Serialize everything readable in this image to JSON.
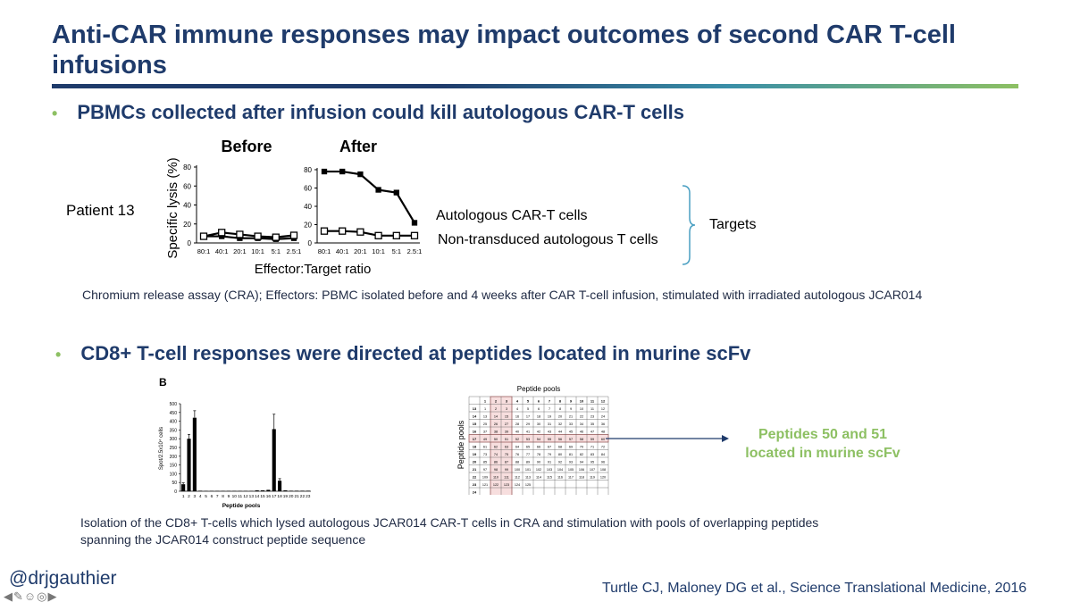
{
  "slide": {
    "title": "Anti-CAR immune responses may impact outcomes of second CAR T-cell infusions",
    "bullet1": "PBMCs collected after infusion could kill autologous CAR-T cells",
    "bullet2": "CD8+ T-cell responses were directed at peptides located in murine scFv",
    "bullet_glyph": "•",
    "patient_label": "Patient 13",
    "legend_car": "Autologous CAR-T cells",
    "legend_nontrans": "Non-transduced autologous T cells",
    "targets_label": "Targets",
    "cra_caption": "Chromium release assay (CRA); Effectors: PBMC isolated before and 4 weeks after CAR T-cell infusion, stimulated with irradiated autologous JCAR014",
    "panel_b_label": "B",
    "peptide_note_line1": "Peptides 50 and 51",
    "peptide_note_line2": "located in murine scFv",
    "iso_caption_line1": "Isolation of the CD8+ T-cells which lysed autologous JCAR014 CAR-T cells in CRA and stimulation with pools of overlapping peptides",
    "iso_caption_line2": "spanning the JCAR014 construct peptide sequence",
    "handle": "@drjgauthier",
    "citation": "Turtle CJ, Maloney DG et al., Science Translational Medicine, 2016",
    "nav_glyphs": "◀✎☺◎▶",
    "colors": {
      "title": "#1f3b6b",
      "accent_green": "#8dc063",
      "arrow": "#1f3b6b",
      "highlight": "#e07a7a"
    }
  },
  "chart_data": [
    {
      "type": "line",
      "title": "Before",
      "ylabel": "Specific lysis (%)",
      "xlabel": "Effector:Target ratio",
      "categories": [
        "80:1",
        "40:1",
        "20:1",
        "10:1",
        "5:1",
        "2.5:1"
      ],
      "yticks": [
        0,
        20,
        40,
        60,
        80
      ],
      "ylim": [
        0,
        80
      ],
      "series": [
        {
          "name": "Autologous CAR-T cells",
          "marker": "filled-square",
          "values": [
            7,
            7,
            5,
            5,
            4,
            5
          ]
        },
        {
          "name": "Non-transduced autologous T cells",
          "marker": "open-square",
          "values": [
            7,
            11,
            9,
            7,
            6,
            8
          ]
        }
      ]
    },
    {
      "type": "line",
      "title": "After",
      "categories": [
        "80:1",
        "40:1",
        "20:1",
        "10:1",
        "5:1",
        "2.5:1"
      ],
      "yticks": [
        0,
        20,
        40,
        60,
        80
      ],
      "ylim": [
        0,
        80
      ],
      "series": [
        {
          "name": "Autologous CAR-T cells",
          "marker": "filled-square",
          "values": [
            78,
            78,
            75,
            58,
            55,
            22
          ]
        },
        {
          "name": "Non-transduced autologous T cells",
          "marker": "open-square",
          "values": [
            13,
            13,
            12,
            8,
            8,
            8
          ]
        }
      ]
    },
    {
      "type": "bar",
      "ylabel": "Spot/2.5x10⁴ cells",
      "xlabel": "Peptide pools",
      "ylim": [
        0,
        500
      ],
      "yticks": [
        0,
        50,
        100,
        150,
        200,
        250,
        300,
        350,
        400,
        450,
        500
      ],
      "categories": [
        "1",
        "2",
        "3",
        "4",
        "5",
        "6",
        "7",
        "8",
        "9",
        "10",
        "11",
        "12",
        "13",
        "14",
        "15",
        "16",
        "17",
        "18",
        "19",
        "20",
        "21",
        "22",
        "23"
      ],
      "values": [
        40,
        300,
        420,
        3,
        2,
        2,
        2,
        2,
        2,
        2,
        2,
        2,
        2,
        5,
        5,
        8,
        355,
        60,
        5,
        3,
        3,
        3,
        3
      ],
      "errors": [
        8,
        25,
        40,
        0,
        0,
        0,
        0,
        0,
        0,
        0,
        0,
        0,
        0,
        0,
        0,
        0,
        85,
        12,
        0,
        0,
        0,
        0,
        0
      ]
    },
    {
      "type": "table",
      "title": "Peptide pools",
      "ylabel": "Peptide pools",
      "col_headers": [
        "1",
        "2",
        "3",
        "4",
        "5",
        "6",
        "7",
        "8",
        "9",
        "10",
        "11",
        "12"
      ],
      "row_headers": [
        "13",
        "14",
        "15",
        "16",
        "17",
        "18",
        "19",
        "20",
        "21",
        "22",
        "23",
        "24"
      ],
      "rows": [
        [
          "1",
          "2",
          "3",
          "4",
          "5",
          "6",
          "7",
          "8",
          "9",
          "10",
          "11",
          "12"
        ],
        [
          "13",
          "14",
          "15",
          "16",
          "17",
          "18",
          "19",
          "20",
          "21",
          "22",
          "23",
          "24"
        ],
        [
          "25",
          "26",
          "27",
          "28",
          "29",
          "30",
          "31",
          "32",
          "33",
          "34",
          "35",
          "36"
        ],
        [
          "37",
          "38",
          "39",
          "40",
          "41",
          "42",
          "43",
          "44",
          "45",
          "46",
          "47",
          "48"
        ],
        [
          "49",
          "50",
          "51",
          "52",
          "53",
          "54",
          "55",
          "56",
          "57",
          "58",
          "59",
          "60"
        ],
        [
          "61",
          "62",
          "63",
          "64",
          "65",
          "66",
          "67",
          "68",
          "69",
          "70",
          "71",
          "72"
        ],
        [
          "73",
          "74",
          "75",
          "76",
          "77",
          "78",
          "79",
          "80",
          "81",
          "82",
          "83",
          "84"
        ],
        [
          "85",
          "86",
          "87",
          "88",
          "89",
          "90",
          "91",
          "92",
          "93",
          "94",
          "95",
          "96"
        ],
        [
          "97",
          "98",
          "99",
          "100",
          "101",
          "102",
          "103",
          "104",
          "105",
          "106",
          "107",
          "108"
        ],
        [
          "109",
          "110",
          "111",
          "112",
          "113",
          "114",
          "115",
          "116",
          "117",
          "118",
          "119",
          "120"
        ],
        [
          "121",
          "122",
          "123",
          "124",
          "125",
          "",
          "",
          "",
          "",
          "",
          "",
          ""
        ],
        [
          "",
          "",
          "",
          "",
          "",
          "",
          "",
          "",
          "",
          "",
          "",
          ""
        ]
      ]
    }
  ]
}
